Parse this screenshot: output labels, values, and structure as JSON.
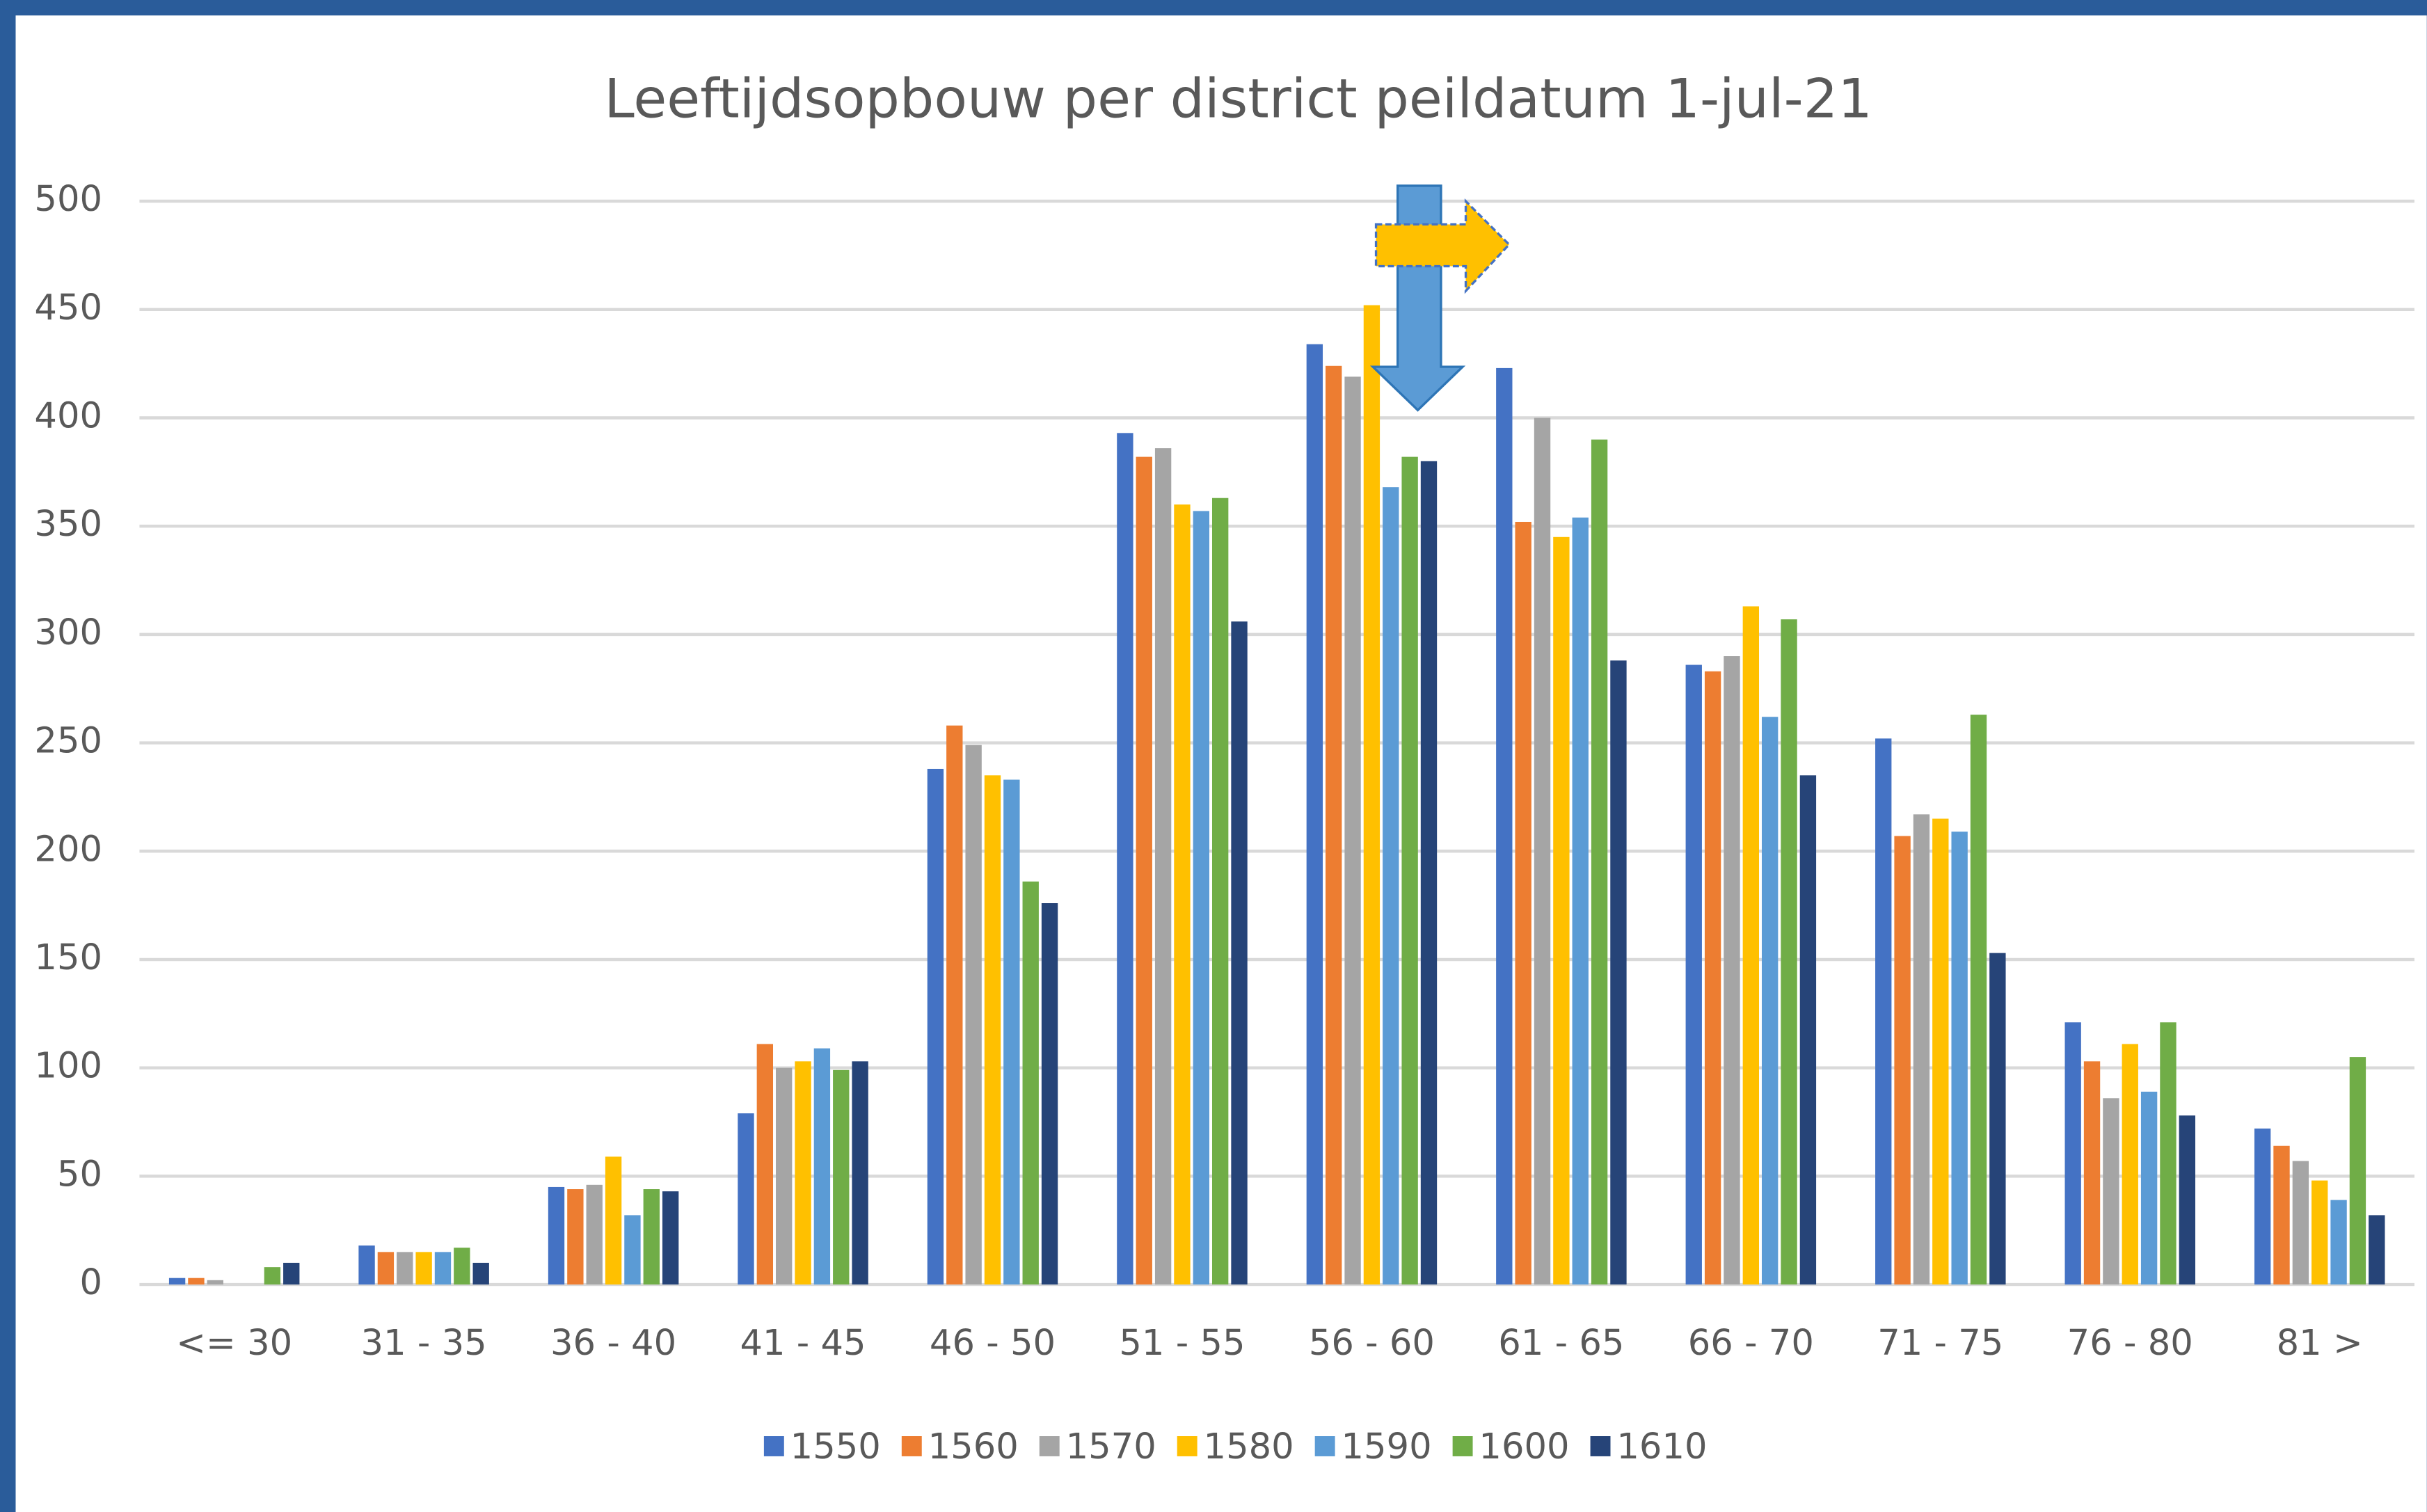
{
  "chart_data": {
    "type": "bar",
    "title": "Leeftijdsopbouw per district peildatum 1-jul-21",
    "categories": [
      "<= 30",
      "31 - 35",
      "36 - 40",
      "41 - 45",
      "46 - 50",
      "51 - 55",
      "56 - 60",
      "61 - 65",
      "66 - 70",
      "71 - 75",
      "76 - 80",
      "81 >"
    ],
    "series": [
      {
        "name": "1550",
        "color": "#4472c4",
        "values": [
          3,
          18,
          45,
          79,
          238,
          393,
          434,
          423,
          286,
          252,
          121,
          72
        ]
      },
      {
        "name": "1560",
        "color": "#ed7d31",
        "values": [
          3,
          15,
          44,
          111,
          258,
          382,
          424,
          352,
          283,
          207,
          103,
          64
        ]
      },
      {
        "name": "1570",
        "color": "#a5a5a5",
        "values": [
          2,
          15,
          46,
          100,
          249,
          386,
          419,
          400,
          290,
          217,
          86,
          57
        ]
      },
      {
        "name": "1580",
        "color": "#ffc000",
        "values": [
          0,
          15,
          59,
          103,
          235,
          360,
          452,
          345,
          313,
          215,
          111,
          48
        ]
      },
      {
        "name": "1590",
        "color": "#5b9bd5",
        "values": [
          0,
          15,
          32,
          109,
          233,
          357,
          368,
          354,
          262,
          209,
          89,
          39
        ]
      },
      {
        "name": "1600",
        "color": "#70ad47",
        "values": [
          8,
          17,
          44,
          99,
          186,
          363,
          382,
          390,
          307,
          263,
          121,
          105
        ]
      },
      {
        "name": "1610",
        "color": "#264478",
        "values": [
          10,
          10,
          43,
          103,
          176,
          306,
          380,
          288,
          235,
          153,
          78,
          32
        ]
      }
    ],
    "ylim": [
      0,
      500
    ],
    "yticks": [
      0,
      50,
      100,
      150,
      200,
      250,
      300,
      350,
      400,
      450,
      500
    ],
    "grid": true,
    "legend": "bottom"
  }
}
